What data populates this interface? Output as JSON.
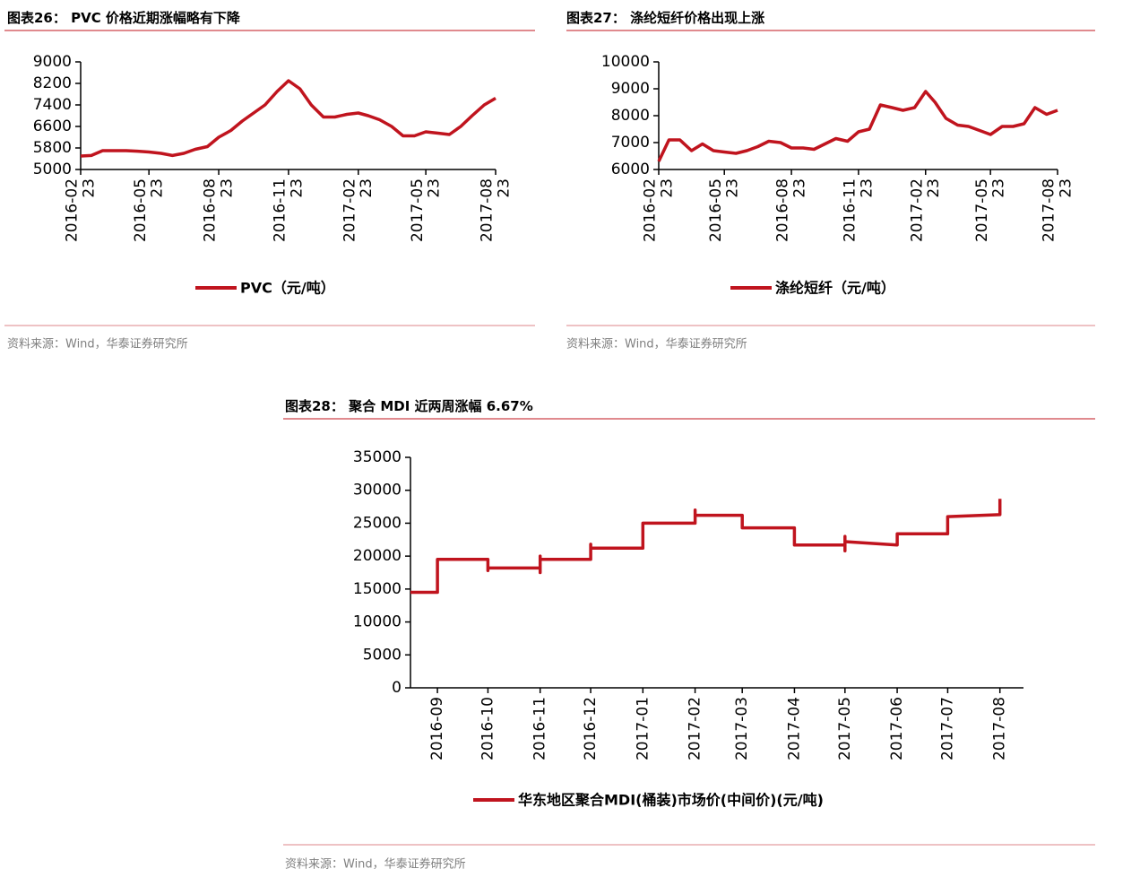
{
  "chart_data": [
    {
      "type": "line",
      "title": "图表26： PVC 价格近期涨幅略有下降",
      "source": "资料来源：Wind，华泰证券研究所",
      "x": [
        "2016-02-23",
        "2016-03-08",
        "2016-03-23",
        "2016-04-08",
        "2016-04-23",
        "2016-05-08",
        "2016-05-23",
        "2016-06-08",
        "2016-06-23",
        "2016-07-08",
        "2016-07-23",
        "2016-08-08",
        "2016-08-23",
        "2016-09-08",
        "2016-09-23",
        "2016-10-08",
        "2016-10-23",
        "2016-11-08",
        "2016-11-23",
        "2016-12-08",
        "2016-12-23",
        "2017-01-08",
        "2017-01-23",
        "2017-02-08",
        "2017-02-23",
        "2017-03-08",
        "2017-03-23",
        "2017-04-08",
        "2017-04-23",
        "2017-05-08",
        "2017-05-23",
        "2017-06-08",
        "2017-06-23",
        "2017-07-08",
        "2017-07-23",
        "2017-08-08",
        "2017-08-23"
      ],
      "series": [
        {
          "name": "PVC（元/吨）",
          "color": "#c0141e",
          "values": [
            5500,
            5520,
            5700,
            5700,
            5700,
            5680,
            5650,
            5600,
            5520,
            5600,
            5750,
            5850,
            6200,
            6450,
            6800,
            7100,
            7400,
            7900,
            8300,
            8000,
            7400,
            6950,
            6950,
            7050,
            7100,
            7000,
            6850,
            6600,
            6250,
            6250,
            6400,
            6350,
            6300,
            6600,
            7000,
            7400,
            7650
          ]
        }
      ],
      "xlim": [
        "2016-02-23",
        "2017-08-23"
      ],
      "xticks": [
        {
          "value": "2016-02-23",
          "label": "2016-02 23"
        },
        {
          "value": "2016-05-23",
          "label": "2016-05 23"
        },
        {
          "value": "2016-08-23",
          "label": "2016-08 23"
        },
        {
          "value": "2016-11-23",
          "label": "2016-11 23"
        },
        {
          "value": "2017-02-23",
          "label": "2017-02 23"
        },
        {
          "value": "2017-05-23",
          "label": "2017-05 23"
        },
        {
          "value": "2017-08-23",
          "label": "2017-08 23"
        }
      ],
      "ylim": [
        5000,
        9000
      ],
      "yticks": [
        5000,
        5800,
        6600,
        7400,
        8200,
        9000
      ]
    },
    {
      "type": "line",
      "title": "图表27： 涤纶短纤价格出现上涨",
      "source": "资料来源：Wind，华泰证券研究所",
      "x": [
        "2016-02-23",
        "2016-03-08",
        "2016-03-23",
        "2016-04-08",
        "2016-04-23",
        "2016-05-08",
        "2016-05-23",
        "2016-06-08",
        "2016-06-23",
        "2016-07-08",
        "2016-07-23",
        "2016-08-08",
        "2016-08-23",
        "2016-09-08",
        "2016-09-23",
        "2016-10-08",
        "2016-10-23",
        "2016-11-08",
        "2016-11-23",
        "2016-12-08",
        "2016-12-23",
        "2017-01-08",
        "2017-01-23",
        "2017-02-08",
        "2017-02-23",
        "2017-03-08",
        "2017-03-23",
        "2017-04-08",
        "2017-04-23",
        "2017-05-08",
        "2017-05-23",
        "2017-06-08",
        "2017-06-23",
        "2017-07-08",
        "2017-07-23",
        "2017-08-08",
        "2017-08-23"
      ],
      "series": [
        {
          "name": "涤纶短纤（元/吨）",
          "color": "#c0141e",
          "values": [
            6300,
            7100,
            7100,
            6700,
            6950,
            6700,
            6650,
            6600,
            6700,
            6850,
            7050,
            7000,
            6800,
            6800,
            6750,
            6950,
            7150,
            7050,
            7400,
            7500,
            8400,
            8300,
            8200,
            8300,
            8900,
            8500,
            7900,
            7650,
            7600,
            7450,
            7300,
            7600,
            7600,
            7700,
            8300,
            8050,
            8200
          ]
        }
      ],
      "xlim": [
        "2016-02-23",
        "2017-08-23"
      ],
      "xticks": [
        {
          "value": "2016-02-23",
          "label": "2016-02 23"
        },
        {
          "value": "2016-05-23",
          "label": "2016-05 23"
        },
        {
          "value": "2016-08-23",
          "label": "2016-08 23"
        },
        {
          "value": "2016-11-23",
          "label": "2016-11 23"
        },
        {
          "value": "2017-02-23",
          "label": "2017-02 23"
        },
        {
          "value": "2017-05-23",
          "label": "2017-05 23"
        },
        {
          "value": "2017-08-23",
          "label": "2017-08 23"
        }
      ],
      "ylim": [
        6000,
        10000
      ],
      "yticks": [
        6000,
        7000,
        8000,
        9000,
        10000
      ]
    },
    {
      "type": "line",
      "title": "图表28： 聚合 MDI 近两周涨幅 6.67%",
      "source": "资料来源：Wind，华泰证券研究所",
      "x": [
        "2016-08-16",
        "2016-09-01",
        "2016-09-01",
        "2016-09-01",
        "2016-10-01",
        "2016-10-01",
        "2016-10-01",
        "2016-11-01",
        "2016-11-01",
        "2016-11-01",
        "2016-11-01",
        "2016-12-01",
        "2016-12-01",
        "2016-12-01",
        "2017-01-01",
        "2017-01-01",
        "2017-02-01",
        "2017-02-01",
        "2017-02-01",
        "2017-03-01",
        "2017-03-01",
        "2017-04-01",
        "2017-04-01",
        "2017-05-01",
        "2017-05-01",
        "2017-05-01",
        "2017-05-01",
        "2017-06-01",
        "2017-06-01",
        "2017-07-01",
        "2017-07-01",
        "2017-08-01",
        "2017-08-01"
      ],
      "series": [
        {
          "name": "华东地区聚合MDI(桶装)市场价(中间价)(元/吨)",
          "color": "#c0141e",
          "values": [
            14500,
            14500,
            16000,
            19500,
            19500,
            17800,
            18200,
            18200,
            17500,
            20000,
            19500,
            19500,
            21800,
            21200,
            21200,
            25000,
            25000,
            27000,
            26200,
            26200,
            24300,
            24300,
            21700,
            21700,
            20800,
            23000,
            22200,
            21700,
            23400,
            23400,
            26000,
            26300,
            28700
          ]
        }
      ],
      "xlim": [
        "2016-08-16",
        "2017-08-15"
      ],
      "xticks": [
        {
          "value": "2016-09-01",
          "label": "2016-09"
        },
        {
          "value": "2016-10-01",
          "label": "2016-10"
        },
        {
          "value": "2016-11-01",
          "label": "2016-11"
        },
        {
          "value": "2016-12-01",
          "label": "2016-12"
        },
        {
          "value": "2017-01-01",
          "label": "2017-01"
        },
        {
          "value": "2017-02-01",
          "label": "2017-02"
        },
        {
          "value": "2017-03-01",
          "label": "2017-03"
        },
        {
          "value": "2017-04-01",
          "label": "2017-04"
        },
        {
          "value": "2017-05-01",
          "label": "2017-05"
        },
        {
          "value": "2017-06-01",
          "label": "2017-06"
        },
        {
          "value": "2017-07-01",
          "label": "2017-07"
        },
        {
          "value": "2017-08-01",
          "label": "2017-08"
        }
      ],
      "ylim": [
        0,
        35000
      ],
      "yticks": [
        0,
        5000,
        10000,
        15000,
        20000,
        25000,
        30000,
        35000
      ]
    }
  ]
}
